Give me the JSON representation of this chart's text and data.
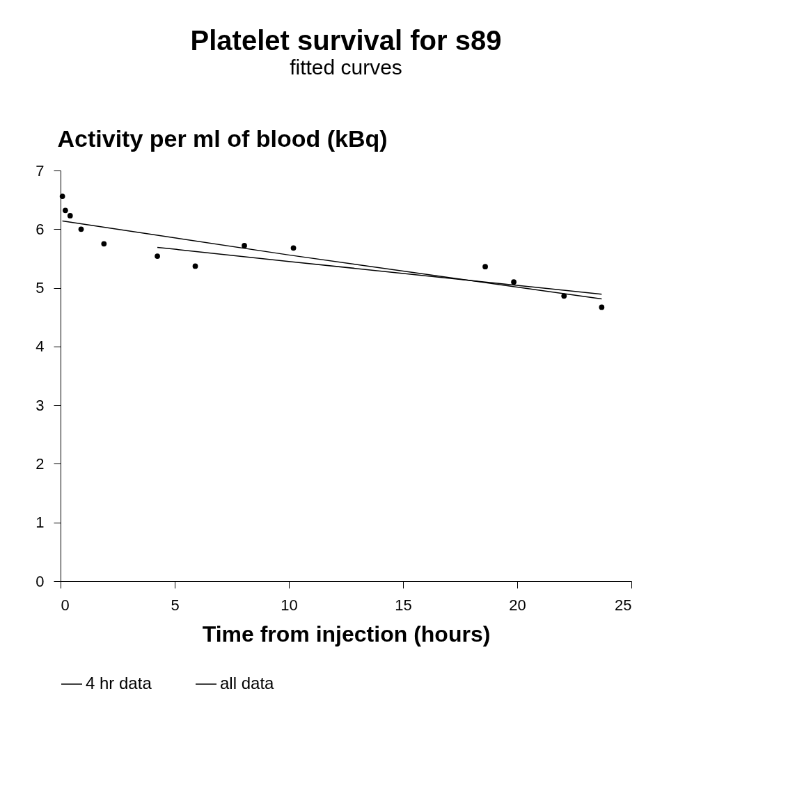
{
  "chart_data": {
    "type": "line",
    "title": "Platelet survival for s89",
    "subtitle": "fitted curves",
    "xlabel": "Time from injection (hours)",
    "ylabel": "Activity per ml of blood (kBq)",
    "xlim": [
      0,
      25
    ],
    "xticks": [
      0,
      5,
      10,
      15,
      20,
      25
    ],
    "ylim": [
      0,
      7
    ],
    "yticks": [
      0,
      1,
      2,
      3,
      4,
      5,
      6,
      7
    ],
    "grid": false,
    "legend": "bottom",
    "series": [
      {
        "name": "4 hr data",
        "color": "#000000",
        "x": [
          4.24,
          10,
          23.7
        ],
        "values": [
          5.69,
          5.45,
          4.89
        ]
      },
      {
        "name": "all data",
        "color": "#000000",
        "x": [
          0.08,
          10,
          23.7
        ],
        "values": [
          6.14,
          5.56,
          4.81
        ]
      },
      {
        "color": "#000000",
        "type": "scatter",
        "marker": "circle",
        "x": [
          0.08,
          0.21,
          0.42,
          0.9,
          1.9,
          4.24,
          5.9,
          8.05,
          10.2,
          18.6,
          19.85,
          22.05,
          23.7
        ],
        "values": [
          6.56,
          6.32,
          6.23,
          6.0,
          5.75,
          5.54,
          5.37,
          5.72,
          5.68,
          5.36,
          5.1,
          4.86,
          4.67
        ]
      }
    ]
  }
}
